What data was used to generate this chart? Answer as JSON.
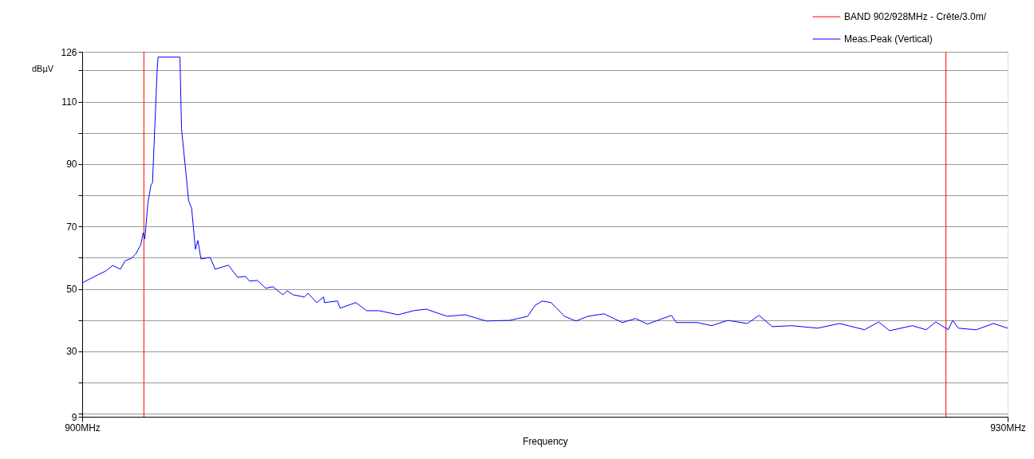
{
  "chart_data": {
    "type": "line",
    "xlabel": "Frequency",
    "ylabel": "dBµV",
    "xlim": [
      900,
      930
    ],
    "xticks": [
      {
        "value": 900,
        "label": "900MHz"
      },
      {
        "value": 930,
        "label": "930MHz"
      }
    ],
    "ylim": [
      9,
      126
    ],
    "yticks": [
      9,
      {
        "value": 10,
        "label": null
      },
      {
        "value": 20,
        "label": null
      },
      30,
      {
        "value": 40,
        "label": null
      },
      50,
      {
        "value": 60,
        "label": null
      },
      70,
      {
        "value": 80,
        "label": null
      },
      90,
      {
        "value": 100,
        "label": null
      },
      110,
      {
        "value": 120,
        "label": null
      },
      126
    ],
    "grid": "y",
    "legend": "top right",
    "line_style": "solid",
    "marker": "none",
    "series": [
      {
        "name": "BAND 902/928MHz  - Crête/3.0m/",
        "color": "#ff0000",
        "x": [
          902,
          902,
          915,
          928,
          928
        ],
        "values": [
          9,
          126,
          null,
          126,
          9
        ]
      },
      {
        "name": "Meas.Peak (Vertical)",
        "color": "#0000ff",
        "x": [
          900.0,
          900.25,
          900.51,
          900.76,
          900.99,
          901.24,
          901.39,
          901.6,
          901.75,
          901.9,
          901.98,
          902.03,
          902.13,
          902.23,
          902.28,
          902.43,
          902.46,
          903.17,
          903.22,
          903.34,
          903.45,
          903.55,
          903.67,
          903.75,
          903.85,
          904.15,
          904.31,
          904.74,
          905.04,
          905.3,
          905.42,
          905.68,
          905.95,
          906.18,
          906.51,
          906.64,
          906.84,
          907.2,
          907.32,
          907.6,
          907.83,
          907.85,
          908.28,
          908.36,
          908.87,
          909.22,
          909.63,
          910.24,
          910.74,
          911.15,
          911.83,
          912.41,
          913.1,
          913.86,
          914.44,
          914.69,
          914.92,
          915.2,
          915.38,
          915.63,
          916.01,
          916.39,
          916.92,
          917.51,
          917.94,
          918.32,
          919.1,
          919.26,
          919.94,
          920.4,
          920.93,
          921.56,
          921.94,
          922.37,
          923.0,
          923.84,
          924.55,
          925.36,
          925.82,
          926.17,
          926.91,
          927.36,
          927.67,
          928.07,
          928.22,
          928.4,
          928.98,
          929.54,
          930.0
        ],
        "values": [
          51.9,
          53.2,
          54.5,
          55.7,
          57.5,
          56.3,
          59.0,
          59.8,
          61.4,
          64.2,
          68.0,
          66.0,
          77.5,
          83.3,
          84.0,
          120.1,
          124.3,
          124.3,
          101.3,
          89.5,
          78.3,
          75.7,
          62.7,
          65.5,
          59.6,
          60.1,
          56.3,
          57.6,
          53.7,
          54.0,
          52.5,
          52.7,
          50.2,
          50.7,
          48.1,
          49.4,
          48.1,
          47.4,
          48.6,
          45.6,
          47.4,
          45.6,
          46.1,
          43.8,
          45.6,
          43.0,
          43.0,
          41.7,
          43.0,
          43.5,
          41.2,
          41.7,
          39.7,
          39.9,
          41.2,
          44.8,
          46.1,
          45.6,
          43.8,
          41.2,
          39.7,
          41.2,
          42.0,
          39.2,
          40.5,
          38.7,
          41.5,
          39.2,
          39.2,
          38.2,
          39.9,
          38.9,
          41.5,
          37.9,
          38.2,
          37.4,
          38.9,
          36.9,
          39.4,
          36.6,
          38.2,
          36.9,
          39.4,
          36.9,
          39.9,
          37.4,
          36.9,
          38.9,
          37.4
        ]
      }
    ]
  }
}
